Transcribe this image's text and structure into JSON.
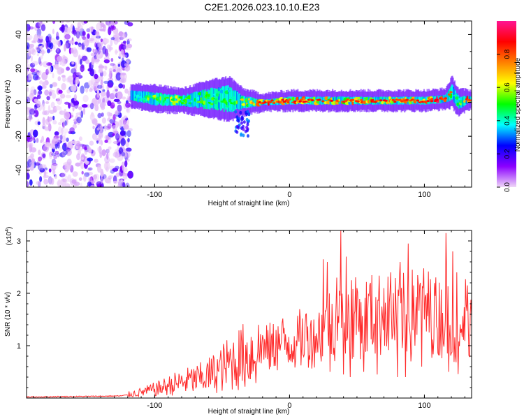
{
  "figure": {
    "title": "C2E1.2026.023.10.10.E23"
  },
  "chart_data": [
    {
      "type": "heatmap",
      "title": "C2E1.2026.023.10.10.E23",
      "xlabel": "Height of straight line (km)",
      "ylabel": "Frequency (Hz)",
      "xlim": [
        -195,
        135
      ],
      "ylim": [
        -50,
        48
      ],
      "xticks": [
        -100,
        0,
        100
      ],
      "yticks": [
        -40,
        -20,
        0,
        20,
        40
      ],
      "colorbar": {
        "label": "Normalized spectral amplitude",
        "range": [
          0.0,
          1.0
        ],
        "ticks": [
          0.0,
          0.2,
          0.4,
          0.6,
          0.8
        ],
        "tick_labels": [
          "0.0",
          "0.2",
          "0.4",
          "0.6",
          "0.8"
        ],
        "colormap": [
          "#f0d8f8",
          "#8b00ff",
          "#0000ff",
          "#00ffff",
          "#00ff00",
          "#ffff00",
          "#ff8000",
          "#ff0000",
          "#ff1493"
        ]
      },
      "noise_region": {
        "x_range": [
          -195,
          -118
        ],
        "freq_range": [
          -50,
          48
        ],
        "amplitude": 0.12
      },
      "signal_band": [
        {
          "x": -118,
          "freq_center": 4,
          "half_width": 4,
          "amplitude": 0.35
        },
        {
          "x": -100,
          "freq_center": 2,
          "half_width": 5,
          "amplitude": 0.6
        },
        {
          "x": -80,
          "freq_center": 1,
          "half_width": 4,
          "amplitude": 0.55
        },
        {
          "x": -60,
          "freq_center": 2,
          "half_width": 8,
          "amplitude": 0.5
        },
        {
          "x": -45,
          "freq_center": 2,
          "half_width": 10,
          "amplitude": 0.45
        },
        {
          "x": -35,
          "freq_center": 0,
          "half_width": 5,
          "amplitude": 0.6
        },
        {
          "x": -20,
          "freq_center": 0,
          "half_width": 2,
          "amplitude": 0.85
        },
        {
          "x": 0,
          "freq_center": 1,
          "half_width": 3,
          "amplitude": 0.75
        },
        {
          "x": 20,
          "freq_center": 1,
          "half_width": 3,
          "amplitude": 0.7
        },
        {
          "x": 40,
          "freq_center": 1,
          "half_width": 3,
          "amplitude": 0.7
        },
        {
          "x": 60,
          "freq_center": 1,
          "half_width": 3,
          "amplitude": 0.75
        },
        {
          "x": 80,
          "freq_center": 1,
          "half_width": 3,
          "amplitude": 0.7
        },
        {
          "x": 100,
          "freq_center": 1,
          "half_width": 3,
          "amplitude": 0.8
        },
        {
          "x": 115,
          "freq_center": 2,
          "half_width": 3,
          "amplitude": 0.9
        },
        {
          "x": 120,
          "freq_center": 6,
          "half_width": 6,
          "amplitude": 0.5
        },
        {
          "x": 125,
          "freq_center": 0,
          "half_width": 5,
          "amplitude": 0.45
        },
        {
          "x": 135,
          "freq_center": 2,
          "half_width": 2,
          "amplitude": 0.95
        }
      ],
      "side_blob": {
        "x_range": [
          -40,
          -30
        ],
        "freq_range": [
          -20,
          -5
        ],
        "amplitude": 0.3
      }
    },
    {
      "type": "line",
      "xlabel": "Height of straight line (km)",
      "ylabel": "SNR (10 * v/v)",
      "y_multiplier_label": "(x10",
      "y_multiplier_exponent": "4",
      "y_multiplier_close": ")",
      "xlim": [
        -195,
        135
      ],
      "ylim": [
        0,
        3.2
      ],
      "xticks": [
        -100,
        0,
        100
      ],
      "yticks": [
        1,
        2,
        3
      ],
      "line_color": "#ff2a2a",
      "series": [
        {
          "name": "SNR",
          "x": [
            -195,
            -150,
            -125,
            -110,
            -95,
            -85,
            -75,
            -65,
            -55,
            -45,
            -35,
            -25,
            -15,
            -5,
            5,
            15,
            25,
            30,
            40,
            50,
            60,
            70,
            80,
            90,
            100,
            110,
            115,
            120,
            125,
            130,
            135
          ],
          "y": [
            0.02,
            0.03,
            0.04,
            0.1,
            0.18,
            0.25,
            0.3,
            0.35,
            0.45,
            0.6,
            0.72,
            0.8,
            0.9,
            1.0,
            1.05,
            1.1,
            1.2,
            1.35,
            1.4,
            1.45,
            1.5,
            1.5,
            1.45,
            1.55,
            1.6,
            1.45,
            1.5,
            1.6,
            0.7,
            1.5,
            1.45
          ]
        }
      ],
      "spikes": [
        {
          "x": -75,
          "y": 0.35
        },
        {
          "x": -40,
          "y": 0.75
        },
        {
          "x": -20,
          "y": 1.2
        },
        {
          "x": -10,
          "y": 1.3
        },
        {
          "x": 5,
          "y": 1.1
        },
        {
          "x": 12,
          "y": 1.6
        },
        {
          "x": 18,
          "y": 1.5
        },
        {
          "x": 25,
          "y": 2.65
        },
        {
          "x": 28,
          "y": 2.6
        },
        {
          "x": 30,
          "y": 2.85
        },
        {
          "x": 35,
          "y": 2.3
        },
        {
          "x": 38,
          "y": 3.2
        },
        {
          "x": 42,
          "y": 2.7
        },
        {
          "x": 46,
          "y": 2.25
        },
        {
          "x": 50,
          "y": 2.1
        },
        {
          "x": 55,
          "y": 2.85
        },
        {
          "x": 60,
          "y": 2.2
        },
        {
          "x": 65,
          "y": 2.7
        },
        {
          "x": 70,
          "y": 2.1
        },
        {
          "x": 75,
          "y": 2.4
        },
        {
          "x": 82,
          "y": 2.6
        },
        {
          "x": 88,
          "y": 2.95
        },
        {
          "x": 92,
          "y": 2.15
        },
        {
          "x": 97,
          "y": 2.2
        },
        {
          "x": 102,
          "y": 2.0
        },
        {
          "x": 108,
          "y": 1.95
        },
        {
          "x": 116,
          "y": 3.15
        },
        {
          "x": 121,
          "y": 2.8
        },
        {
          "x": 124,
          "y": 2.4
        }
      ],
      "dips": [
        {
          "x": 30,
          "y": 0.5
        },
        {
          "x": 40,
          "y": 0.45
        },
        {
          "x": 45,
          "y": 0.4
        },
        {
          "x": 55,
          "y": 0.5
        },
        {
          "x": 65,
          "y": 0.45
        },
        {
          "x": 80,
          "y": 0.4
        },
        {
          "x": 86,
          "y": 0.4
        },
        {
          "x": 90,
          "y": 0.7
        },
        {
          "x": 98,
          "y": 0.6
        },
        {
          "x": 118,
          "y": 0.5
        }
      ]
    }
  ]
}
